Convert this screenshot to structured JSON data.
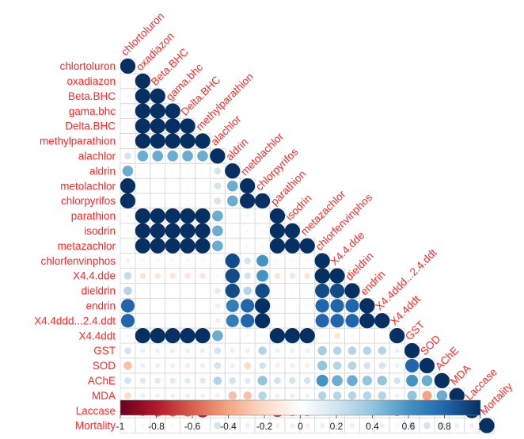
{
  "chart_data": {
    "type": "heatmap",
    "layout": "lower-triangle correlation matrix (circles)",
    "title": "",
    "variables": [
      "chlortoluron",
      "oxadiazon",
      "Beta.BHC",
      "gama.bhc",
      "Delta.BHC",
      "methylparathion",
      "alachlor",
      "aldrin",
      "metolachlor",
      "chlorpyrifos",
      "parathion",
      "isodrin",
      "metazachlor",
      "chlorfenvinphos",
      "X4.4.dde",
      "dieldrin",
      "endrin",
      "X4.4ddd...2.4.ddt",
      "X4.4ddt",
      "GST",
      "SOD",
      "AChE",
      "MDA",
      "Laccase",
      "Mortality"
    ],
    "matrix": [
      [
        1
      ],
      [
        0.05,
        1
      ],
      [
        0.05,
        1,
        1
      ],
      [
        0.05,
        1,
        1,
        1
      ],
      [
        0.05,
        1,
        1,
        1,
        1
      ],
      [
        0.05,
        1,
        1,
        1,
        1,
        1
      ],
      [
        0.2,
        0.5,
        0.5,
        0.5,
        0.5,
        0.5,
        1
      ],
      [
        0.5,
        0.03,
        0.03,
        0.03,
        0.03,
        0.03,
        0.2,
        1
      ],
      [
        1,
        0.03,
        0.03,
        0.03,
        0.03,
        0.03,
        0.2,
        0.5,
        1
      ],
      [
        1,
        0.03,
        0.03,
        0.03,
        0.03,
        0.03,
        0.2,
        0.5,
        1,
        1
      ],
      [
        0.05,
        1,
        1,
        1,
        1,
        1,
        0.5,
        0.03,
        0.05,
        0.05,
        1
      ],
      [
        0.05,
        1,
        1,
        1,
        1,
        1,
        0.5,
        0.03,
        0.05,
        0.05,
        1,
        1
      ],
      [
        0.05,
        1,
        1,
        1,
        1,
        1,
        0.5,
        0.03,
        0.05,
        0.05,
        1,
        1,
        1
      ],
      [
        0.08,
        -0.05,
        -0.05,
        -0.05,
        -0.05,
        -0.05,
        0.05,
        0.9,
        0.2,
        0.6,
        -0.05,
        -0.05,
        -0.05,
        1
      ],
      [
        0.25,
        -0.15,
        -0.15,
        -0.15,
        -0.15,
        -0.15,
        0.05,
        0.9,
        0.2,
        0.6,
        -0.15,
        -0.15,
        -0.15,
        1,
        1
      ],
      [
        0.3,
        0.03,
        0.03,
        0.03,
        0.03,
        0.03,
        0.15,
        0.9,
        0.3,
        0.9,
        0.03,
        0.03,
        0.03,
        0.9,
        0.9,
        1
      ],
      [
        0.8,
        -0.03,
        -0.03,
        -0.03,
        -0.03,
        -0.03,
        0.1,
        0.7,
        0.8,
        1,
        -0.03,
        -0.03,
        -0.03,
        0.8,
        0.8,
        0.8,
        1
      ],
      [
        0.8,
        -0.03,
        -0.03,
        -0.03,
        -0.03,
        -0.03,
        0.1,
        0.7,
        0.8,
        1,
        -0.03,
        -0.03,
        -0.03,
        0.8,
        0.8,
        0.8,
        1,
        1
      ],
      [
        0.05,
        1,
        1,
        1,
        1,
        1,
        0.5,
        0.03,
        0.05,
        0.05,
        1,
        1,
        1,
        -0.05,
        -0.15,
        0.03,
        -0.03,
        -0.03,
        1
      ],
      [
        0.2,
        0.1,
        0.1,
        0.1,
        0.1,
        0.1,
        0.2,
        0.1,
        0.1,
        0.3,
        0.1,
        0.1,
        0.1,
        0.35,
        0.3,
        0.3,
        0.3,
        0.3,
        0.1,
        1
      ],
      [
        -0.3,
        0.1,
        0.1,
        0.1,
        0.1,
        0.1,
        0.2,
        0.1,
        -0.2,
        0.2,
        -0.1,
        -0.1,
        -0.1,
        0.4,
        0.3,
        0.3,
        0.2,
        0.2,
        0.1,
        0.8,
        1
      ],
      [
        0.2,
        0.15,
        0.15,
        0.15,
        0.15,
        0.15,
        0.3,
        0.2,
        0.15,
        0.4,
        0.2,
        0.2,
        0.2,
        0.6,
        0.5,
        0.5,
        0.4,
        0.4,
        0.2,
        0.6,
        0.5,
        1
      ],
      [
        -0.2,
        0.1,
        0.1,
        0.1,
        0.1,
        0.1,
        0.1,
        -0.3,
        -0.3,
        0.3,
        0.1,
        0.1,
        0.1,
        0.3,
        0.3,
        0.3,
        0.3,
        0.3,
        0.1,
        0.4,
        -0.4,
        0.5,
        1
      ],
      [
        -0.3,
        -0.5,
        -0.6,
        -0.6,
        -0.6,
        -0.8,
        -0.3,
        -0.1,
        -0.3,
        -0.2,
        -0.7,
        -0.5,
        -0.5,
        -0.2,
        -0.2,
        -0.2,
        -0.2,
        -0.2,
        -0.5,
        -0.3,
        -0.2,
        -0.3,
        -0.3,
        1
      ],
      [
        0.05,
        0.05,
        0.05,
        0.05,
        0.05,
        0.05,
        0.2,
        0.1,
        0.1,
        0.1,
        -0.1,
        -0.1,
        -0.1,
        0.1,
        0.1,
        0.1,
        0.1,
        0.1,
        0.05,
        0.2,
        0.2,
        0.2,
        0.1,
        0.1,
        1
      ]
    ],
    "colorbar": {
      "range": [
        -1,
        1
      ],
      "ticks": [
        "-1",
        "-0.8",
        "-0.6",
        "-0.4",
        "-0.2",
        "0",
        "0.2",
        "0.4",
        "0.6",
        "0.8",
        "1"
      ],
      "colors": [
        "#67001F",
        "#B2182B",
        "#D6604D",
        "#F4A582",
        "#FDDBC7",
        "#FFFFFF",
        "#D1E5F0",
        "#92C5DE",
        "#4393C3",
        "#2166AC",
        "#053061"
      ],
      "placement": "bottom"
    },
    "label_color": "#FF2A2A",
    "grid": true
  }
}
